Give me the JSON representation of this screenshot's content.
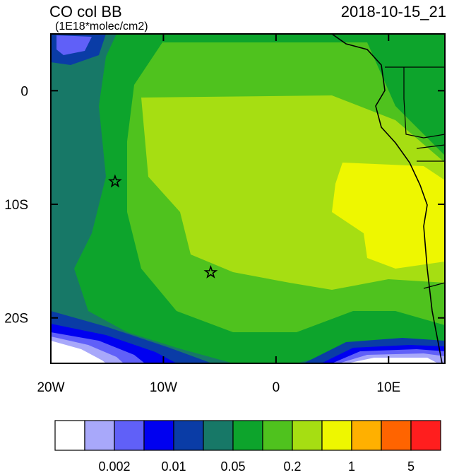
{
  "map": {
    "title": "CO col BB",
    "subtitle": "(1E18*molec/cm2)",
    "time": "2018-10-15_21",
    "xlim": [
      -20,
      15
    ],
    "ylim": [
      -24,
      5
    ],
    "xticks": [
      {
        "value": -20,
        "label": "20W"
      },
      {
        "value": -10,
        "label": "10W"
      },
      0,
      {
        "value": 10,
        "label": "10E"
      }
    ],
    "yticks": [
      0,
      {
        "value": -10,
        "label": "10S"
      },
      {
        "value": -20,
        "label": "20S"
      }
    ],
    "markers": [
      {
        "lon": -14.3,
        "lat": -8
      },
      {
        "lon": -5.8,
        "lat": -16
      }
    ],
    "colorbar": {
      "colors": [
        "#ffffff",
        "#a8a8fa",
        "#6060f8",
        "#0000f0",
        "#0a3ca6",
        "#177867",
        "#0da42c",
        "#4fc21e",
        "#a6de12",
        "#eef700",
        "#ffb000",
        "#ff6400",
        "#ff1e1e"
      ],
      "labels": [
        {
          "value": 0.002,
          "label": "0.002"
        },
        {
          "value": 0.01,
          "label": "0.01"
        },
        {
          "value": 0.05,
          "label": "0.05"
        },
        {
          "value": 0.2,
          "label": "0.2"
        },
        1,
        5
      ]
    }
  }
}
